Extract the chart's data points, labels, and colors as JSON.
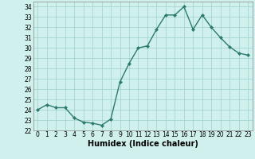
{
  "xlabel": "Humidex (Indice chaleur)",
  "x": [
    0,
    1,
    2,
    3,
    4,
    5,
    6,
    7,
    8,
    9,
    10,
    11,
    12,
    13,
    14,
    15,
    16,
    17,
    18,
    19,
    20,
    21,
    22,
    23
  ],
  "y": [
    24.0,
    24.5,
    24.2,
    24.2,
    23.2,
    22.8,
    22.7,
    22.5,
    23.1,
    26.7,
    28.5,
    30.0,
    30.2,
    31.8,
    33.2,
    33.2,
    34.0,
    31.8,
    33.2,
    32.0,
    31.0,
    30.1,
    29.5,
    29.3
  ],
  "line_color": "#2d7a6e",
  "bg_color": "#cff0ec",
  "grid_color": "#9ecfca",
  "ylim": [
    22,
    34.5
  ],
  "yticks": [
    22,
    23,
    24,
    25,
    26,
    27,
    28,
    29,
    30,
    31,
    32,
    33,
    34
  ],
  "xticks": [
    0,
    1,
    2,
    3,
    4,
    5,
    6,
    7,
    8,
    9,
    10,
    11,
    12,
    13,
    14,
    15,
    16,
    17,
    18,
    19,
    20,
    21,
    22,
    23
  ],
  "tick_fontsize": 5.5,
  "xlabel_fontsize": 7,
  "markersize": 2.0,
  "linewidth": 1.0
}
